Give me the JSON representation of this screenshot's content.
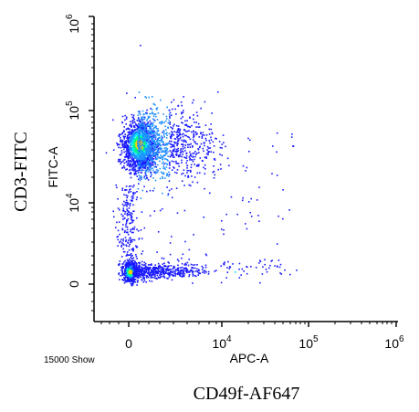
{
  "chart_data": {
    "type": "scatter",
    "style": "flow-cytometry-density-dot-plot",
    "inner_xlabel": "APC-A",
    "inner_ylabel": "FITC-A",
    "outer_xlabel": "CD49f-AF647",
    "outer_ylabel": "CD3-FITC",
    "event_count_label": "15000 Show",
    "x_axis": {
      "scale": "biexponential",
      "ticks": [
        {
          "base": "0",
          "exp": ""
        },
        {
          "base": "10",
          "exp": "4"
        },
        {
          "base": "10",
          "exp": "5"
        },
        {
          "base": "10",
          "exp": "6"
        }
      ]
    },
    "y_axis": {
      "scale": "biexponential",
      "ticks": [
        {
          "base": "0",
          "exp": ""
        },
        {
          "base": "10",
          "exp": "4"
        },
        {
          "base": "10",
          "exp": "5"
        },
        {
          "base": "10",
          "exp": "6"
        }
      ]
    },
    "grid": false,
    "legend": "none",
    "density_colors": [
      "#1a1aff",
      "#1e90ff",
      "#00e5ff",
      "#00ff7f",
      "#ffd000"
    ],
    "populations": [
      {
        "x_center": 0,
        "y_center": 55000.0,
        "density": "high"
      },
      {
        "x_center": 3000,
        "y_center": 50000.0,
        "density": "medium"
      },
      {
        "x_center": 0,
        "y_center": 0,
        "density": "very-high"
      },
      {
        "x_center": 2000,
        "y_center": 0,
        "density": "low"
      }
    ]
  }
}
